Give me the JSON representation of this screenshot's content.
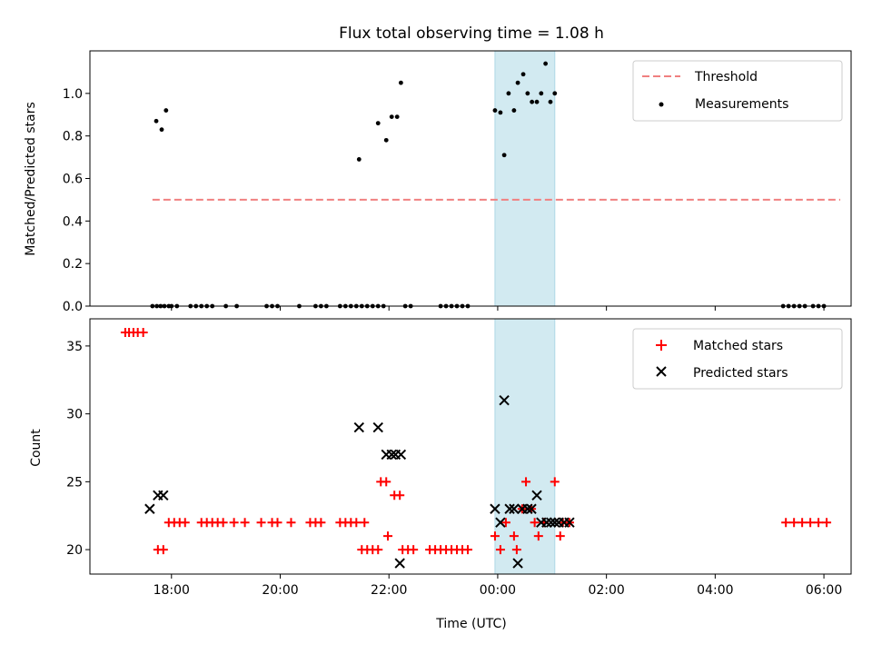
{
  "figure": {
    "title": "Flux total observing time = 1.08 h",
    "shade_color": "#add8e6"
  },
  "chart_data": [
    {
      "type": "scatter",
      "ylabel": "Matched/Predicted stars",
      "xlabel": "",
      "xlim_hours": [
        16.5,
        30.5
      ],
      "ylim": [
        0,
        1.2
      ],
      "yticks": [
        0.0,
        0.2,
        0.4,
        0.6,
        0.8,
        1.0
      ],
      "ytick_labels": [
        "0.0",
        "0.2",
        "0.4",
        "0.6",
        "0.8",
        "1.0"
      ],
      "shaded_interval_hours": [
        23.95,
        25.05
      ],
      "threshold": {
        "name": "Threshold",
        "value": 0.5,
        "x_range_hours": [
          17.65,
          30.3
        ],
        "color": "#f08080",
        "style": "dashed"
      },
      "legend_location": "upper right",
      "series": [
        {
          "name": "Measurements",
          "marker": "dot",
          "color": "#000000",
          "points": [
            [
              17.65,
              0
            ],
            [
              17.73,
              0
            ],
            [
              17.8,
              0
            ],
            [
              17.87,
              0
            ],
            [
              17.95,
              0
            ],
            [
              17.72,
              0.87
            ],
            [
              17.82,
              0.83
            ],
            [
              17.9,
              0.92
            ],
            [
              18.0,
              0
            ],
            [
              18.1,
              0
            ],
            [
              18.35,
              0
            ],
            [
              18.45,
              0
            ],
            [
              18.55,
              0
            ],
            [
              18.65,
              0
            ],
            [
              18.75,
              0
            ],
            [
              19.0,
              0
            ],
            [
              19.2,
              0
            ],
            [
              19.75,
              0
            ],
            [
              19.85,
              0
            ],
            [
              19.95,
              0
            ],
            [
              20.35,
              0
            ],
            [
              20.65,
              0
            ],
            [
              20.75,
              0
            ],
            [
              20.85,
              0
            ],
            [
              21.1,
              0
            ],
            [
              21.2,
              0
            ],
            [
              21.3,
              0
            ],
            [
              21.4,
              0
            ],
            [
              21.5,
              0
            ],
            [
              21.6,
              0
            ],
            [
              21.7,
              0
            ],
            [
              21.8,
              0
            ],
            [
              21.9,
              0
            ],
            [
              22.3,
              0
            ],
            [
              22.4,
              0
            ],
            [
              22.95,
              0
            ],
            [
              23.05,
              0
            ],
            [
              23.15,
              0
            ],
            [
              23.25,
              0
            ],
            [
              23.35,
              0
            ],
            [
              23.45,
              0
            ],
            [
              21.45,
              0.69
            ],
            [
              21.8,
              0.86
            ],
            [
              21.95,
              0.78
            ],
            [
              22.05,
              0.89
            ],
            [
              22.15,
              0.89
            ],
            [
              22.22,
              1.05
            ],
            [
              23.95,
              0.92
            ],
            [
              24.05,
              0.91
            ],
            [
              24.12,
              0.71
            ],
            [
              24.2,
              1.0
            ],
            [
              24.3,
              0.92
            ],
            [
              24.37,
              1.05
            ],
            [
              24.47,
              1.09
            ],
            [
              24.55,
              1.0
            ],
            [
              24.63,
              0.96
            ],
            [
              24.72,
              0.96
            ],
            [
              24.8,
              1.0
            ],
            [
              24.88,
              1.14
            ],
            [
              24.97,
              0.96
            ],
            [
              25.05,
              1.0
            ],
            [
              29.25,
              0
            ],
            [
              29.35,
              0
            ],
            [
              29.45,
              0
            ],
            [
              29.55,
              0
            ],
            [
              29.65,
              0
            ],
            [
              29.8,
              0
            ],
            [
              29.9,
              0
            ],
            [
              30.0,
              0
            ]
          ]
        }
      ]
    },
    {
      "type": "scatter",
      "ylabel": "Count",
      "xlabel": "Time (UTC)",
      "xlim_hours": [
        16.5,
        30.5
      ],
      "ylim": [
        18.2,
        37
      ],
      "yticks": [
        20,
        25,
        30,
        35
      ],
      "ytick_labels": [
        "20",
        "25",
        "30",
        "35"
      ],
      "xticks_hours": [
        18,
        20,
        22,
        24,
        26,
        28,
        30
      ],
      "xtick_labels": [
        "18:00",
        "20:00",
        "22:00",
        "00:00",
        "02:00",
        "04:00",
        "06:00"
      ],
      "shaded_interval_hours": [
        23.95,
        25.05
      ],
      "legend_location": "upper right",
      "series": [
        {
          "name": "Matched stars",
          "marker": "plus",
          "color": "#ff0000",
          "points": [
            [
              17.15,
              36
            ],
            [
              17.22,
              36
            ],
            [
              17.3,
              36
            ],
            [
              17.38,
              36
            ],
            [
              17.48,
              36
            ],
            [
              17.75,
              20
            ],
            [
              17.85,
              20
            ],
            [
              17.95,
              22
            ],
            [
              18.05,
              22
            ],
            [
              18.15,
              22
            ],
            [
              18.25,
              22
            ],
            [
              18.55,
              22
            ],
            [
              18.65,
              22
            ],
            [
              18.75,
              22
            ],
            [
              18.85,
              22
            ],
            [
              18.95,
              22
            ],
            [
              19.15,
              22
            ],
            [
              19.35,
              22
            ],
            [
              19.65,
              22
            ],
            [
              19.85,
              22
            ],
            [
              19.95,
              22
            ],
            [
              20.2,
              22
            ],
            [
              20.55,
              22
            ],
            [
              20.65,
              22
            ],
            [
              20.75,
              22
            ],
            [
              21.1,
              22
            ],
            [
              21.2,
              22
            ],
            [
              21.3,
              22
            ],
            [
              21.4,
              22
            ],
            [
              21.55,
              22
            ],
            [
              21.5,
              20
            ],
            [
              21.6,
              20
            ],
            [
              21.7,
              20
            ],
            [
              21.8,
              20
            ],
            [
              21.85,
              25
            ],
            [
              21.95,
              25
            ],
            [
              21.98,
              21
            ],
            [
              22.1,
              24
            ],
            [
              22.2,
              24
            ],
            [
              22.25,
              20
            ],
            [
              22.35,
              20
            ],
            [
              22.45,
              20
            ],
            [
              22.75,
              20
            ],
            [
              22.85,
              20
            ],
            [
              22.95,
              20
            ],
            [
              23.05,
              20
            ],
            [
              23.15,
              20
            ],
            [
              23.25,
              20
            ],
            [
              23.35,
              20
            ],
            [
              23.45,
              20
            ],
            [
              23.95,
              21
            ],
            [
              24.05,
              20
            ],
            [
              24.15,
              22
            ],
            [
              24.3,
              21
            ],
            [
              24.35,
              20
            ],
            [
              24.45,
              23
            ],
            [
              24.52,
              25
            ],
            [
              24.62,
              23
            ],
            [
              24.68,
              22
            ],
            [
              24.75,
              21
            ],
            [
              24.85,
              22
            ],
            [
              25.05,
              25
            ],
            [
              25.15,
              21
            ],
            [
              25.2,
              22
            ],
            [
              25.32,
              22
            ],
            [
              29.3,
              22
            ],
            [
              29.45,
              22
            ],
            [
              29.6,
              22
            ],
            [
              29.75,
              22
            ],
            [
              29.9,
              22
            ],
            [
              30.05,
              22
            ]
          ]
        },
        {
          "name": "Predicted stars",
          "marker": "x",
          "color": "#000000",
          "points": [
            [
              17.6,
              23
            ],
            [
              17.75,
              24
            ],
            [
              17.85,
              24
            ],
            [
              21.45,
              29
            ],
            [
              21.8,
              29
            ],
            [
              21.95,
              27
            ],
            [
              22.05,
              27
            ],
            [
              22.12,
              27
            ],
            [
              22.22,
              27
            ],
            [
              22.2,
              19
            ],
            [
              23.95,
              23
            ],
            [
              24.05,
              22
            ],
            [
              24.12,
              31
            ],
            [
              24.22,
              23
            ],
            [
              24.3,
              23
            ],
            [
              24.37,
              19
            ],
            [
              24.45,
              23
            ],
            [
              24.55,
              23
            ],
            [
              24.62,
              23
            ],
            [
              24.72,
              24
            ],
            [
              24.8,
              22
            ],
            [
              24.9,
              22
            ],
            [
              24.98,
              22
            ],
            [
              25.05,
              22
            ],
            [
              25.12,
              22
            ],
            [
              25.22,
              22
            ],
            [
              25.32,
              22
            ]
          ]
        }
      ]
    }
  ]
}
